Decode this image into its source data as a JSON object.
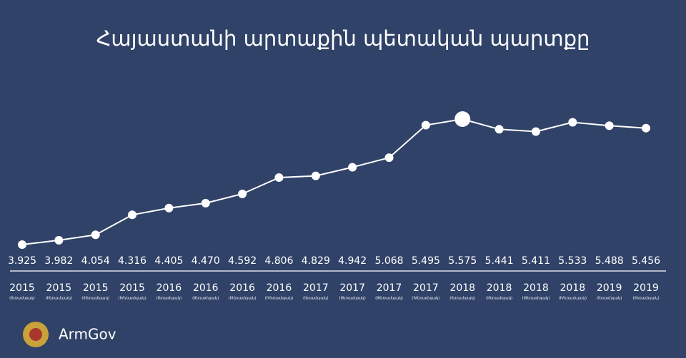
{
  "chart_data": {
    "type": "line",
    "title": "Հայաստանի արտաքին պետական պարտքը",
    "brand": "ArmGov",
    "categories": [
      "2015",
      "2015",
      "2015",
      "2015",
      "2016",
      "2016",
      "2016",
      "2016",
      "2017",
      "2017",
      "2017",
      "2017",
      "2018",
      "2018",
      "2018",
      "2018",
      "2019",
      "2019"
    ],
    "quarters": [
      "(Iեռամսյակ)",
      "(IIեռամսյակ)",
      "(IIIեռամսյակ)",
      "(IVեռամսյակ)",
      "(Iեռամսյակ)",
      "(IIեռամսյակ)",
      "(IIIեռամսյակ)",
      "(IVեռամսյակ)",
      "(Iեռամսյակ)",
      "(IIեռամսյակ)",
      "(IIIեռամսյակ)",
      "(IVեռամսյակ)",
      "(Iեռամսյակ)",
      "(IIեռամսյակ)",
      "(IIIեռամսյակ)",
      "(IVեռամսյակ)",
      "(Iեռամսյակ)",
      "(IIեռամսյակ)"
    ],
    "values": [
      3.925,
      3.982,
      4.054,
      4.316,
      4.405,
      4.47,
      4.592,
      4.806,
      4.829,
      4.942,
      5.068,
      5.495,
      5.575,
      5.441,
      5.411,
      5.533,
      5.488,
      5.456
    ],
    "value_labels": [
      "3.925",
      "3.982",
      "4.054",
      "4.316",
      "4.405",
      "4.470",
      "4.592",
      "4.806",
      "4.829",
      "4.942",
      "5.068",
      "5.495",
      "5.575",
      "5.441",
      "5.411",
      "5.533",
      "5.488",
      "5.456"
    ],
    "highlight_index": 12,
    "color": "#ffffff"
  }
}
